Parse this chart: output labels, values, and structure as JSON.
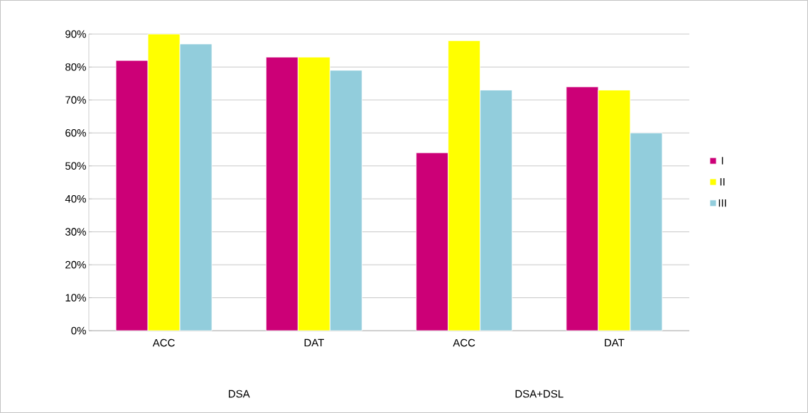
{
  "chart_data": {
    "type": "bar",
    "categories": [
      "ACC",
      "DAT",
      "ACC",
      "DAT"
    ],
    "series": [
      {
        "name": "I",
        "color": "#cc0077",
        "values": [
          82,
          83,
          54,
          74
        ]
      },
      {
        "name": "II",
        "color": "#ffff00",
        "values": [
          90,
          83,
          88,
          73
        ]
      },
      {
        "name": "III",
        "color": "#92cddc",
        "values": [
          87,
          79,
          73,
          60
        ]
      }
    ],
    "ylim": [
      0,
      90
    ],
    "yticks": [
      {
        "value": 0,
        "label": "0%"
      },
      {
        "value": 10,
        "label": "10%"
      },
      {
        "value": 20,
        "label": "20%"
      },
      {
        "value": 30,
        "label": "30%"
      },
      {
        "value": 40,
        "label": "40%"
      },
      {
        "value": 50,
        "label": "50%"
      },
      {
        "value": 60,
        "label": "60%"
      },
      {
        "value": 70,
        "label": "70%"
      },
      {
        "value": 80,
        "label": "80%"
      },
      {
        "value": 90,
        "label": "90%"
      }
    ],
    "annotations": [
      "DSA",
      "DSA+DSL"
    ],
    "grid": "y",
    "legend": "right"
  }
}
